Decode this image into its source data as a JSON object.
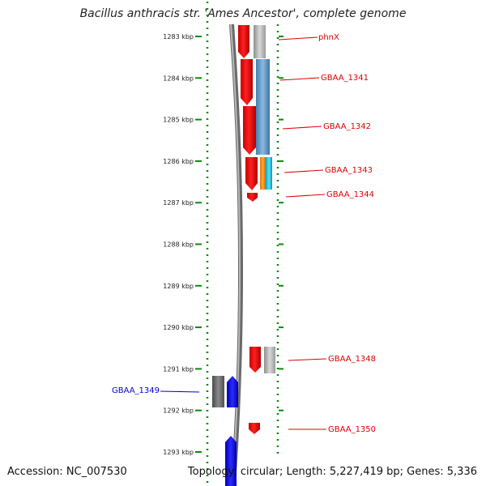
{
  "title": "Bacillus anthracis str. 'Ames Ancestor', complete genome",
  "footer": {
    "accession": "Accession: NC_007530",
    "summary": "Topology: circular; Length: 5,227,419 bp; Genes: 5,336"
  },
  "colors": {
    "tick": "#0a8a0a",
    "label_red": "#e00000",
    "label_blue": "#0000cc",
    "backbone": "#8a8a8a"
  },
  "ticks": [
    "1283 kbp",
    "1284 kbp",
    "1285 kbp",
    "1286 kbp",
    "1287 kbp",
    "1288 kbp",
    "1289 kbp",
    "1290 kbp",
    "1291 kbp",
    "1292 kbp",
    "1293 kbp"
  ],
  "gene_labels": [
    {
      "text": "phnX",
      "color": "red"
    },
    {
      "text": "GBAA_1341",
      "color": "red"
    },
    {
      "text": "GBAA_1342",
      "color": "red"
    },
    {
      "text": "GBAA_1343",
      "color": "red"
    },
    {
      "text": "GBAA_1344",
      "color": "red"
    },
    {
      "text": "GBAA_1348",
      "color": "red"
    },
    {
      "text": "GBAA_1349",
      "color": "blue"
    },
    {
      "text": "GBAA_1350",
      "color": "red"
    }
  ]
}
